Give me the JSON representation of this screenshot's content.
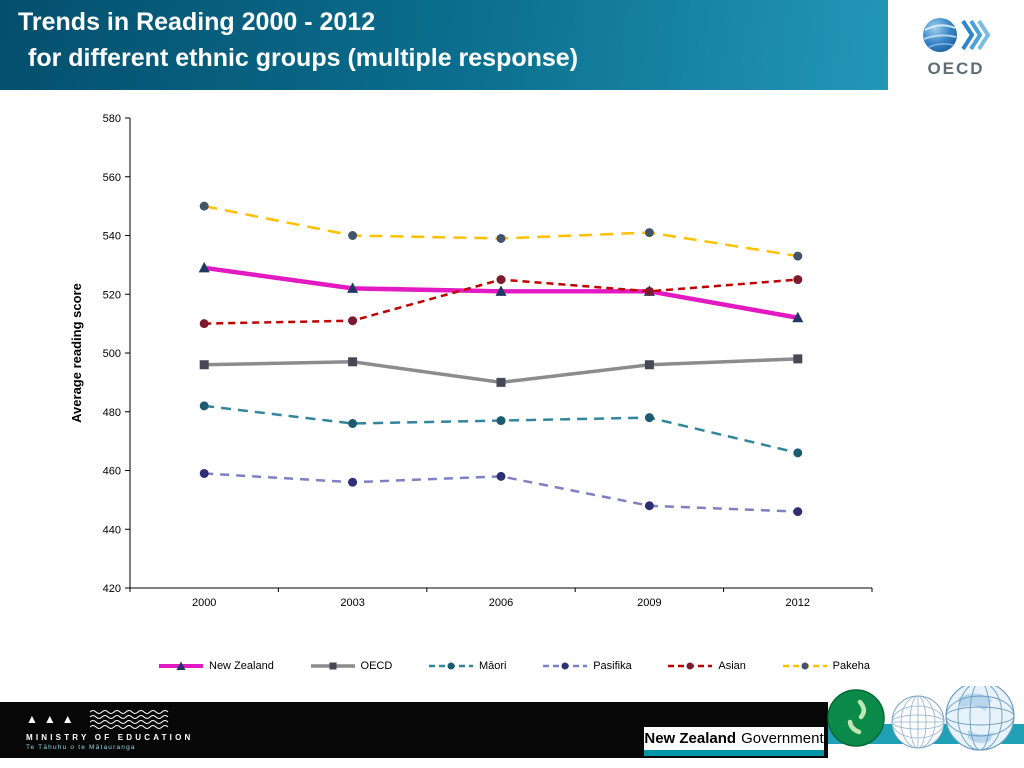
{
  "header": {
    "title_line1": "Trends in Reading 2000 - 2012",
    "title_line2": "for different ethnic groups (multiple response)",
    "logo": {
      "text": "OECD"
    }
  },
  "chart_data": {
    "type": "line",
    "title": "",
    "categories": [
      "2000",
      "2003",
      "2006",
      "2009",
      "2012"
    ],
    "xlabel": "",
    "ylabel": "Average reading score",
    "ylim": [
      420,
      580
    ],
    "ytick_step": 20,
    "grid": false,
    "legend_position": "bottom",
    "series": [
      {
        "name": "New Zealand",
        "values": [
          529,
          522,
          521,
          521,
          512
        ],
        "color": "#e319c1",
        "marker": "triangle",
        "marker_color": "#1f3864",
        "line_style": "solid",
        "line_width": 4.5
      },
      {
        "name": "OECD",
        "values": [
          496,
          497,
          490,
          496,
          498
        ],
        "color": "#8c8c8c",
        "marker": "square",
        "marker_color": "#474756",
        "line_style": "solid",
        "line_width": 3.5
      },
      {
        "name": "Māori",
        "values": [
          482,
          476,
          477,
          478,
          466
        ],
        "color": "#31859c",
        "marker": "circle",
        "marker_color": "#1e5a70",
        "line_style": "dashed",
        "dash": "10 7",
        "line_width": 2.5
      },
      {
        "name": "Pasifika",
        "values": [
          459,
          456,
          458,
          448,
          446
        ],
        "color": "#7e80c4",
        "marker": "circle",
        "marker_color": "#2f2f74",
        "line_style": "dashed",
        "dash": "9 7",
        "line_width": 2.5
      },
      {
        "name": "Asian",
        "values": [
          510,
          511,
          525,
          521,
          525
        ],
        "color": "#c00000",
        "marker": "circle",
        "marker_color": "#7c1b2e",
        "line_style": "dashed",
        "dash": "7 5",
        "line_width": 2.5
      },
      {
        "name": "Pakeha",
        "values": [
          550,
          540,
          539,
          541,
          533
        ],
        "color": "#ffc000",
        "marker": "circle",
        "marker_color": "#44546a",
        "line_style": "dashed",
        "dash": "13 8",
        "line_width": 2.5
      }
    ]
  },
  "footer": {
    "ministry": {
      "name": "MINISTRY OF EDUCATION",
      "subtitle": "Te Tāhuhu o te Mātauranga"
    },
    "government": {
      "part1": "New Zealand",
      "part2": "Government"
    }
  }
}
